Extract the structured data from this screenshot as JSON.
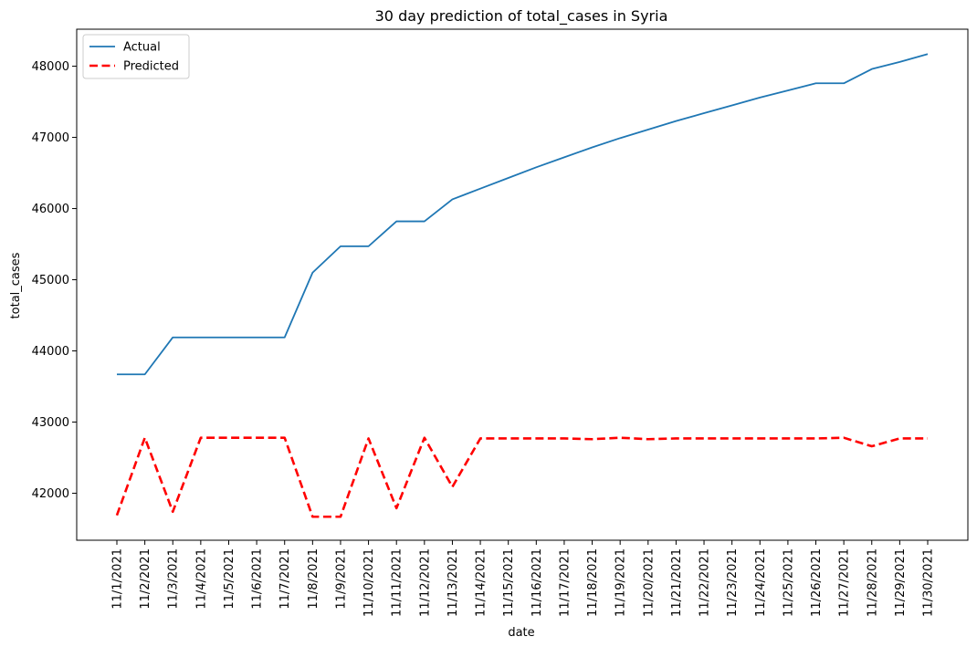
{
  "chart_data": {
    "type": "line",
    "title": "30 day prediction of total_cases in Syria",
    "xlabel": "date",
    "ylabel": "total_cases",
    "ylim": [
      41340,
      48520
    ],
    "yticks": [
      42000,
      43000,
      44000,
      45000,
      46000,
      47000,
      48000
    ],
    "legend_position": "top-left",
    "grid": false,
    "categories": [
      "11/1/2021",
      "11/2/2021",
      "11/3/2021",
      "11/4/2021",
      "11/5/2021",
      "11/6/2021",
      "11/7/2021",
      "11/8/2021",
      "11/9/2021",
      "11/10/2021",
      "11/11/2021",
      "11/12/2021",
      "11/13/2021",
      "11/14/2021",
      "11/15/2021",
      "11/16/2021",
      "11/17/2021",
      "11/18/2021",
      "11/19/2021",
      "11/20/2021",
      "11/21/2021",
      "11/22/2021",
      "11/23/2021",
      "11/24/2021",
      "11/25/2021",
      "11/26/2021",
      "11/27/2021",
      "11/28/2021",
      "11/29/2021",
      "11/30/2021"
    ],
    "series": [
      {
        "name": "Actual",
        "color": "#1f77b4",
        "style": "solid",
        "values": [
          43670,
          43670,
          44190,
          44190,
          44190,
          44190,
          44190,
          45100,
          45470,
          45470,
          45820,
          45820,
          46130,
          46280,
          46430,
          46580,
          46720,
          46860,
          46990,
          47110,
          47230,
          47340,
          47450,
          47560,
          47660,
          47760,
          47760,
          47960,
          48060,
          48170
        ]
      },
      {
        "name": "Predicted",
        "color": "#ff0000",
        "style": "dashed",
        "values": [
          41690,
          42780,
          41740,
          42780,
          42780,
          42780,
          42780,
          41670,
          41670,
          42770,
          41790,
          42780,
          42090,
          42770,
          42770,
          42770,
          42770,
          42760,
          42780,
          42760,
          42770,
          42770,
          42770,
          42770,
          42770,
          42770,
          42780,
          42660,
          42770,
          42770
        ]
      }
    ]
  }
}
